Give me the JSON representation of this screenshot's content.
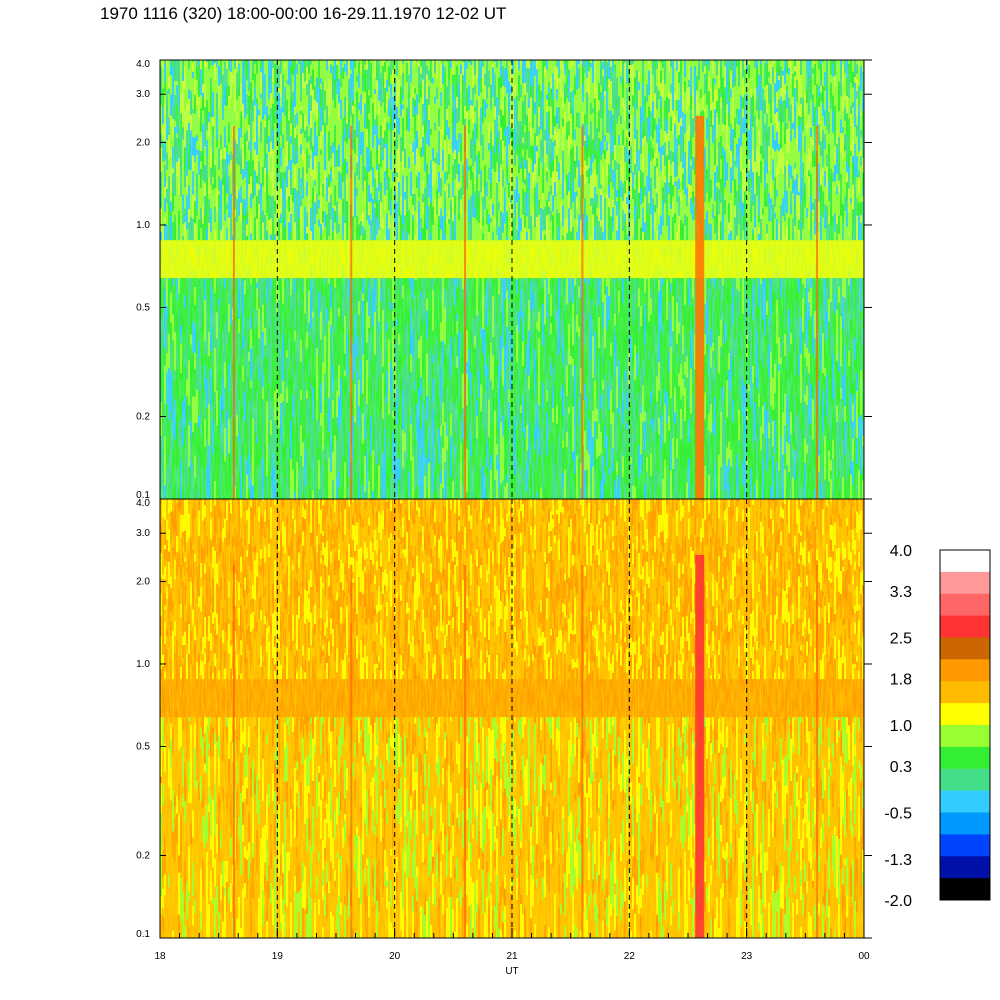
{
  "header": {
    "title": "1970 1116 (320) 18:00-00:00 16-29.11.1970  12-02 UT"
  },
  "chart_data": {
    "type": "heatmap",
    "xlabel": "UT",
    "x_ticks": [
      "18",
      "19",
      "20",
      "21",
      "22",
      "23",
      "00"
    ],
    "x_tick_values": [
      18,
      19,
      20,
      21,
      22,
      23,
      24
    ],
    "xlim": [
      18,
      24
    ],
    "y_scale": "log",
    "panels": [
      {
        "name": "upper",
        "ylim": [
          0.1,
          4.0
        ],
        "y_ticks": [
          "0.1",
          "0.2",
          "0.5",
          "1.0",
          "2.0",
          "3.0",
          "4.0"
        ],
        "y_tick_values": [
          0.1,
          0.2,
          0.5,
          1.0,
          2.0,
          3.0,
          4.0
        ],
        "band_center": 0.75,
        "dominant_level": 0.5
      },
      {
        "name": "lower",
        "ylim": [
          0.1,
          4.0
        ],
        "y_ticks": [
          "0.1",
          "0.2",
          "0.5",
          "1.0",
          "2.0",
          "3.0",
          "4.0"
        ],
        "y_tick_values": [
          0.1,
          0.2,
          0.5,
          1.0,
          2.0,
          3.0,
          4.0
        ],
        "band_center": 0.75,
        "dominant_level": 1.6
      }
    ],
    "hour_gridlines": [
      19,
      20,
      21,
      22,
      23
    ],
    "colorbar": {
      "labels": [
        "4.0",
        "3.3",
        "2.5",
        "1.8",
        "1.0",
        "0.3",
        "-0.5",
        "-1.3",
        "-2.0"
      ],
      "label_values": [
        4.0,
        3.3,
        2.5,
        1.8,
        1.0,
        0.3,
        -0.5,
        -1.3,
        -2.0
      ],
      "range": [
        -2.0,
        4.0
      ],
      "colors_top_to_bottom": [
        "#ffffff",
        "#ff9999",
        "#ff6666",
        "#ff3333",
        "#cc6600",
        "#ff9900",
        "#ffbb00",
        "#ffff00",
        "#99ff33",
        "#33ee33",
        "#44dd88",
        "#33ccff",
        "#0099ff",
        "#0044ff",
        "#0011aa",
        "#000000"
      ]
    },
    "spikes_ut": [
      18.63,
      19.63,
      20.6,
      21.6,
      22.6,
      23.6
    ],
    "strong_spike_ut": 22.6
  }
}
